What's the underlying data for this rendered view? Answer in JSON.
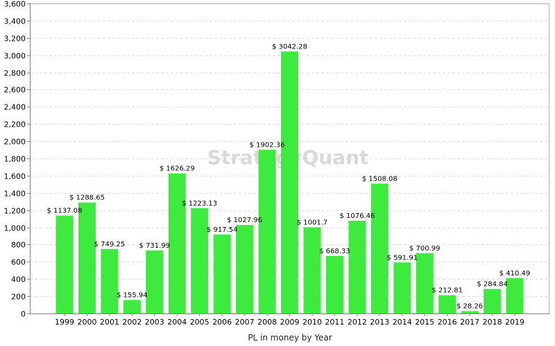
{
  "chart_data": {
    "type": "bar",
    "title": "",
    "xlabel": "PL in money by Year",
    "ylabel": "",
    "ylim": [
      0,
      3600
    ],
    "y_ticks": [
      0,
      200,
      400,
      600,
      800,
      1000,
      1200,
      1400,
      1600,
      1800,
      2000,
      2200,
      2400,
      2600,
      2800,
      3000,
      3200,
      3400,
      3600
    ],
    "y_tick_labels": [
      "0",
      "200",
      "400",
      "600",
      "800",
      "1,000",
      "1,200",
      "1,400",
      "1,600",
      "1,800",
      "2,000",
      "2,200",
      "2,400",
      "2,600",
      "2,800",
      "3,000",
      "3,200",
      "3,400",
      "3,600"
    ],
    "grid": true,
    "legend": "none",
    "bar_color": "#3deb3d",
    "watermark": "StrategyQuant",
    "categories": [
      "1999",
      "2000",
      "2001",
      "2002",
      "2003",
      "2004",
      "2005",
      "2006",
      "2007",
      "2008",
      "2009",
      "2010",
      "2011",
      "2012",
      "2013",
      "2014",
      "2015",
      "2016",
      "2017",
      "2018",
      "2019"
    ],
    "values": [
      1137.08,
      1288.65,
      749.25,
      155.94,
      731.99,
      1626.29,
      1223.13,
      917.54,
      1027.96,
      1902.36,
      3042.28,
      1001.7,
      668.33,
      1076.46,
      1508.08,
      591.91,
      700.99,
      212.81,
      28.26,
      284.84,
      410.49
    ],
    "data_labels": [
      "$ 1137.08",
      "$ 1288.65",
      "$ 749.25",
      "$ 155.94",
      "$ 731.99",
      "$ 1626.29",
      "$ 1223.13",
      "$ 917.54",
      "$ 1027.96",
      "$ 1902.36",
      "$ 3042.28",
      "$ 1001.7",
      "$ 668.33",
      "$ 1076.46",
      "$ 1508.08",
      "$ 591.91",
      "$ 700.99",
      "$ 212.81",
      "$ 28.26",
      "$ 284.84",
      "$ 410.49"
    ]
  }
}
